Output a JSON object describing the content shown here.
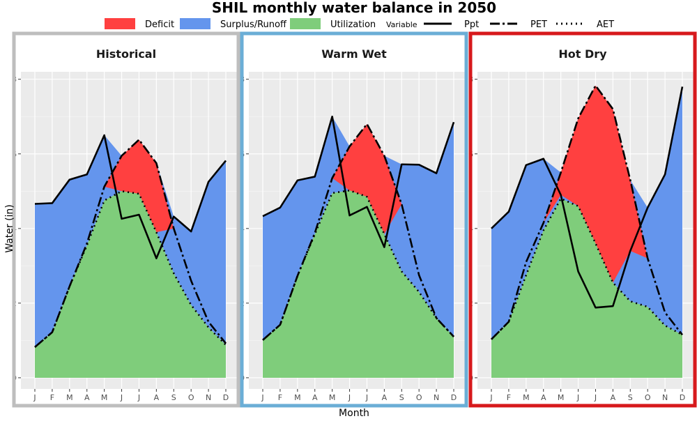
{
  "title": "SHIL monthly water balance in 2050",
  "legend": {
    "fill_items": [
      {
        "label": "Deficit",
        "color": "#ff4040"
      },
      {
        "label": "Surplus/Runoff",
        "color": "#6495ed"
      },
      {
        "label": "Utilization",
        "color": "#7fcd7b"
      }
    ],
    "variable_title": "Variable",
    "line_items": [
      {
        "label": "Ppt",
        "dash": "solid"
      },
      {
        "label": "PET",
        "dash": "dotdash"
      },
      {
        "label": "AET",
        "dash": "dotted"
      }
    ]
  },
  "xlabel": "Month",
  "ylabel": "Water (in)",
  "chart_data": {
    "type": "area",
    "title": "SHIL monthly water balance in 2050",
    "xlabel": "Month",
    "ylabel": "Water (in)",
    "ylim": [
      -0.3,
      8.2
    ],
    "yticks": [
      0,
      2,
      4,
      6,
      8
    ],
    "categories": [
      "J",
      "F",
      "M",
      "A",
      "M",
      "J",
      "J",
      "A",
      "S",
      "O",
      "N",
      "D"
    ],
    "grid": true,
    "legend_position": "top",
    "panels": [
      {
        "title": "Historical",
        "border_color": "#bebebe",
        "series": [
          {
            "name": "Ppt",
            "values": [
              4.66,
              4.68,
              5.31,
              5.45,
              6.5,
              4.26,
              4.37,
              3.2,
              4.32,
              3.92,
              5.25,
              5.82
            ]
          },
          {
            "name": "PET",
            "values": [
              0.82,
              1.22,
              2.45,
              3.6,
              5.12,
              5.95,
              6.38,
              5.75,
              4.0,
              2.6,
              1.5,
              0.92
            ]
          },
          {
            "name": "AET",
            "values": [
              0.82,
              1.22,
              2.45,
              3.55,
              4.75,
              5.0,
              4.93,
              3.9,
              2.8,
              1.95,
              1.35,
              0.88
            ]
          }
        ]
      },
      {
        "title": "Warm Wet",
        "border_color": "#6baed6",
        "series": [
          {
            "name": "Ppt",
            "values": [
              4.33,
              4.56,
              5.29,
              5.39,
              7.0,
              4.35,
              4.58,
              3.5,
              5.72,
              5.71,
              5.48,
              6.85
            ]
          },
          {
            "name": "PET",
            "values": [
              1.01,
              1.42,
              2.73,
              3.88,
              5.35,
              6.2,
              6.8,
              5.95,
              4.65,
              2.75,
              1.6,
              1.1
            ]
          },
          {
            "name": "AET",
            "values": [
              1.01,
              1.42,
              2.73,
              3.85,
              4.95,
              5.02,
              4.85,
              3.85,
              2.85,
              2.3,
              1.6,
              1.1
            ]
          }
        ]
      },
      {
        "title": "Hot Dry",
        "border_color": "#d7191c",
        "series": [
          {
            "name": "Ppt",
            "values": [
              4.0,
              4.45,
              5.7,
              5.87,
              4.9,
              2.85,
              1.88,
              1.92,
              3.4,
              4.56,
              5.45,
              7.8
            ]
          },
          {
            "name": "PET",
            "values": [
              1.03,
              1.5,
              3.1,
              4.15,
              5.5,
              6.95,
              7.83,
              7.2,
              5.3,
              3.2,
              1.75,
              1.15
            ]
          },
          {
            "name": "AET",
            "values": [
              1.03,
              1.5,
              2.75,
              3.95,
              4.8,
              4.6,
              3.6,
              2.55,
              2.05,
              1.9,
              1.4,
              1.15
            ]
          }
        ]
      }
    ]
  }
}
